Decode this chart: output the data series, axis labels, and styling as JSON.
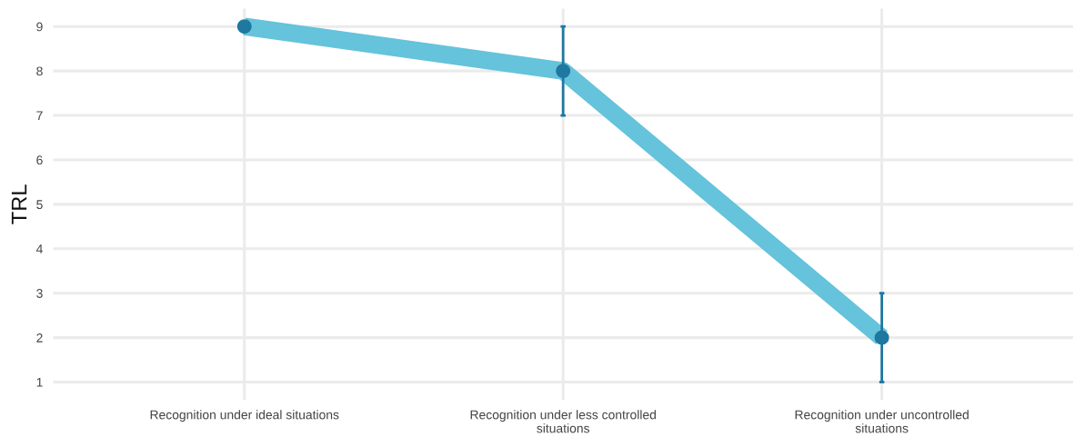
{
  "chart_data": {
    "type": "line",
    "ylabel": "TRL",
    "categories": [
      "Recognition under ideal situations",
      "Recognition under less controlled\nsituations",
      "Recognition under uncontrolled\nsituations"
    ],
    "series": [
      {
        "color": "#65c3db",
        "values": [
          9,
          8,
          2
        ]
      },
      {
        "type": "scatter",
        "color": "#1f78a0",
        "values": [
          9,
          8,
          2
        ],
        "errors": [
          null,
          1,
          1
        ],
        "marker": "circle"
      }
    ],
    "ylim": [
      0.6,
      9.4
    ],
    "yticks": [
      1,
      2,
      3,
      4,
      5,
      6,
      7,
      8,
      9
    ],
    "grid": true
  }
}
